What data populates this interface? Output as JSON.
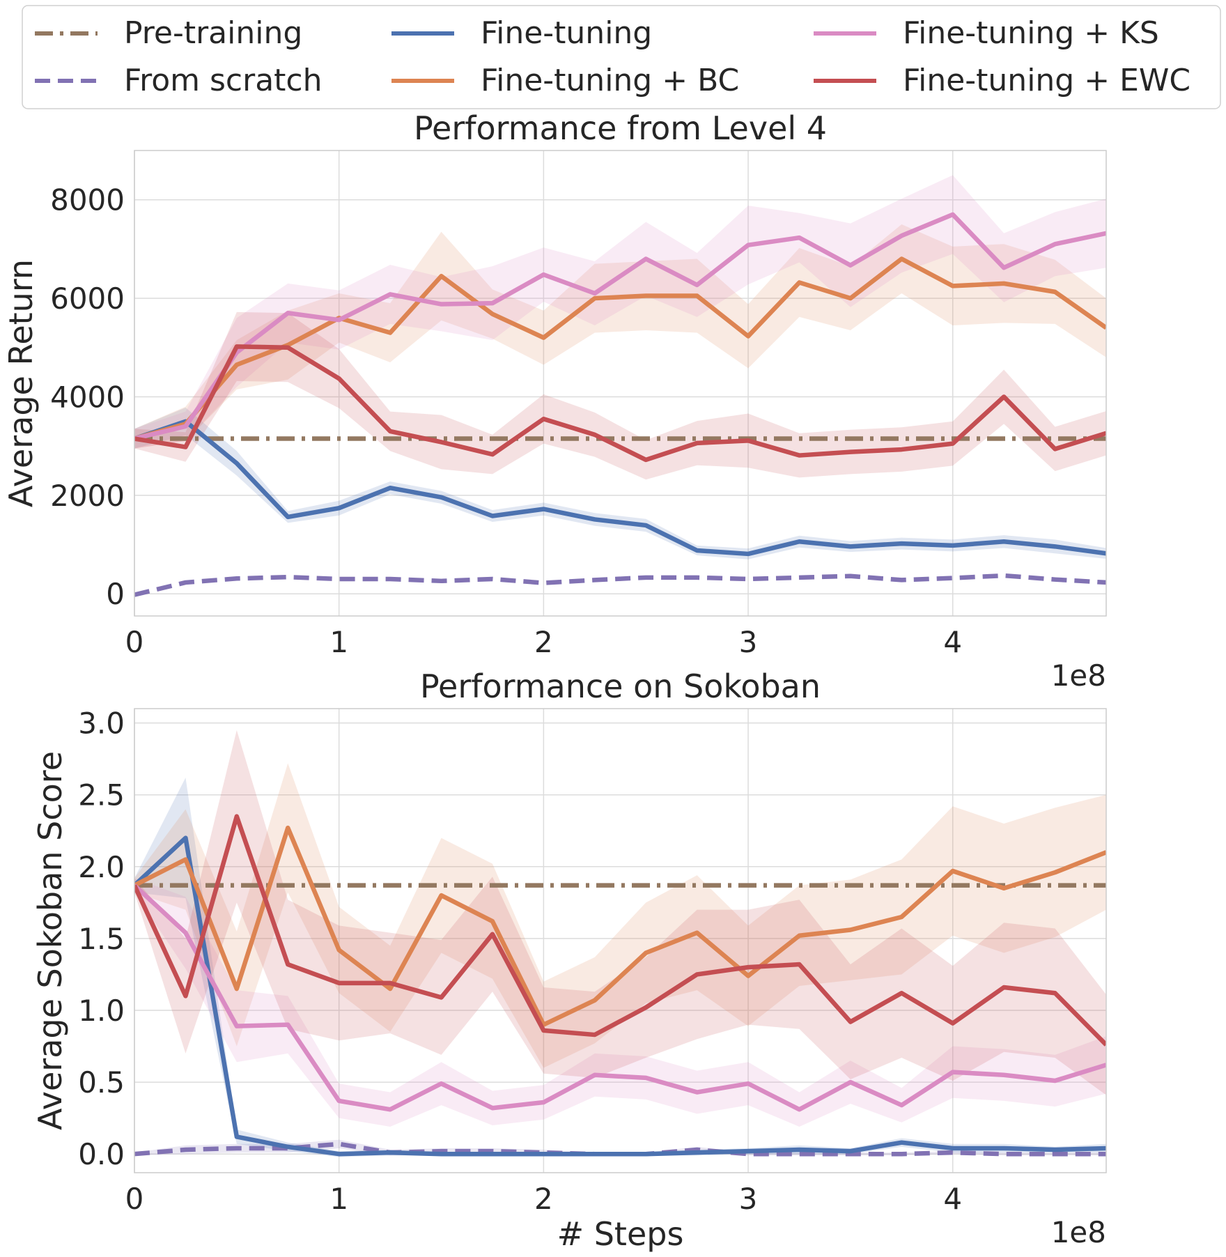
{
  "legend": {
    "items": [
      {
        "label": "Pre-training",
        "color": "#937860",
        "style": "dashdot"
      },
      {
        "label": "From scratch",
        "color": "#8172b3",
        "style": "dashed"
      },
      {
        "label": "Fine-tuning",
        "color": "#4c72b0",
        "style": "solid"
      },
      {
        "label": "Fine-tuning + BC",
        "color": "#dd8452",
        "style": "solid"
      },
      {
        "label": "Fine-tuning + KS",
        "color": "#da8bc3",
        "style": "solid"
      },
      {
        "label": "Fine-tuning + EWC",
        "color": "#c44e52",
        "style": "solid"
      }
    ]
  },
  "chart_data": [
    {
      "type": "line",
      "title": "Performance from Level 4",
      "xlabel": "",
      "ylabel": "Average Return",
      "x_offset_label": "1e8",
      "xlim": [
        0,
        4.75
      ],
      "ylim": [
        -450,
        9000
      ],
      "xticks": [
        0,
        1,
        2,
        3,
        4
      ],
      "xtick_labels": [
        "0",
        "1",
        "2",
        "3",
        "4"
      ],
      "yticks": [
        0,
        2000,
        4000,
        6000,
        8000
      ],
      "ytick_labels": [
        "0",
        "2000",
        "4000",
        "6000",
        "8000"
      ],
      "grid": true,
      "x": [
        0,
        0.25,
        0.5,
        0.75,
        1.0,
        1.25,
        1.5,
        1.75,
        2.0,
        2.25,
        2.5,
        2.75,
        3.0,
        3.25,
        3.5,
        3.75,
        4.0,
        4.25,
        4.5,
        4.75
      ],
      "series": [
        {
          "name": "Pre-training",
          "style": "dashdot",
          "color": "#937860",
          "values": [
            3150,
            3150,
            3150,
            3150,
            3150,
            3150,
            3150,
            3150,
            3150,
            3150,
            3150,
            3150,
            3150,
            3150,
            3150,
            3150,
            3150,
            3150,
            3150,
            3150
          ]
        },
        {
          "name": "From scratch",
          "style": "dashed",
          "color": "#8172b3",
          "values": [
            -20,
            230,
            310,
            340,
            300,
            300,
            260,
            300,
            220,
            280,
            330,
            330,
            300,
            330,
            360,
            280,
            320,
            370,
            290,
            230
          ]
        },
        {
          "name": "Fine-tuning",
          "style": "solid",
          "color": "#4c72b0",
          "values": [
            3150,
            3500,
            2650,
            1560,
            1740,
            2150,
            1960,
            1580,
            1720,
            1510,
            1390,
            880,
            810,
            1060,
            960,
            1020,
            980,
            1060,
            960,
            820
          ],
          "band": [
            200,
            280,
            250,
            120,
            150,
            130,
            130,
            120,
            130,
            130,
            130,
            100,
            110,
            120,
            110,
            120,
            120,
            130,
            140,
            110
          ]
        },
        {
          "name": "Fine-tuning + BC",
          "style": "solid",
          "color": "#dd8452",
          "values": [
            3150,
            3450,
            4650,
            5050,
            5600,
            5300,
            6450,
            5680,
            5200,
            6000,
            6050,
            6050,
            5230,
            6320,
            6000,
            6800,
            6250,
            6300,
            6130,
            5400
          ],
          "band": [
            200,
            350,
            500,
            700,
            500,
            600,
            900,
            500,
            550,
            700,
            700,
            750,
            650,
            700,
            650,
            700,
            800,
            800,
            650,
            600
          ]
        },
        {
          "name": "Fine-tuning + KS",
          "style": "solid",
          "color": "#da8bc3",
          "values": [
            3150,
            3400,
            4900,
            5700,
            5560,
            6080,
            5880,
            5900,
            6480,
            6100,
            6800,
            6270,
            7080,
            7230,
            6670,
            7270,
            7700,
            6620,
            7100,
            7320
          ],
          "band": [
            200,
            300,
            700,
            600,
            600,
            600,
            550,
            750,
            550,
            650,
            750,
            650,
            800,
            500,
            850,
            750,
            800,
            700,
            650,
            700
          ]
        },
        {
          "name": "Fine-tuning + EWC",
          "style": "solid",
          "color": "#c44e52",
          "values": [
            3150,
            2980,
            5020,
            5000,
            4370,
            3300,
            3080,
            2830,
            3550,
            3230,
            2720,
            3060,
            3110,
            2810,
            2880,
            2930,
            3050,
            4000,
            2940,
            3260
          ],
          "band": [
            200,
            300,
            700,
            700,
            600,
            400,
            550,
            400,
            500,
            450,
            400,
            450,
            550,
            450,
            450,
            450,
            450,
            550,
            450,
            450
          ]
        }
      ]
    },
    {
      "type": "line",
      "title": "Performance on Sokoban",
      "xlabel": "# Steps",
      "ylabel": "Average Sokoban Score",
      "x_offset_label": "1e8",
      "xlim": [
        0,
        4.75
      ],
      "ylim": [
        -0.13,
        3.1
      ],
      "xticks": [
        0,
        1,
        2,
        3,
        4
      ],
      "xtick_labels": [
        "0",
        "1",
        "2",
        "3",
        "4"
      ],
      "yticks": [
        0.0,
        0.5,
        1.0,
        1.5,
        2.0,
        2.5,
        3.0
      ],
      "ytick_labels": [
        "0.0",
        "0.5",
        "1.0",
        "1.5",
        "2.0",
        "2.5",
        "3.0"
      ],
      "grid": true,
      "x": [
        0,
        0.25,
        0.5,
        0.75,
        1.0,
        1.25,
        1.5,
        1.75,
        2.0,
        2.25,
        2.5,
        2.75,
        3.0,
        3.25,
        3.5,
        3.75,
        4.0,
        4.25,
        4.5,
        4.75
      ],
      "series": [
        {
          "name": "Pre-training",
          "style": "dashdot",
          "color": "#937860",
          "values": [
            1.87,
            1.87,
            1.87,
            1.87,
            1.87,
            1.87,
            1.87,
            1.87,
            1.87,
            1.87,
            1.87,
            1.87,
            1.87,
            1.87,
            1.87,
            1.87,
            1.87,
            1.87,
            1.87,
            1.87
          ]
        },
        {
          "name": "From scratch",
          "style": "dashed",
          "color": "#8172b3",
          "values": [
            0.0,
            0.03,
            0.04,
            0.04,
            0.07,
            0.01,
            0.02,
            0.02,
            0.01,
            0.0,
            0.0,
            0.03,
            0.0,
            0.0,
            0.0,
            0.0,
            0.01,
            0.0,
            0.0,
            0.0
          ],
          "band": [
            0.01,
            0.03,
            0.03,
            0.03,
            0.03,
            0.02,
            0.02,
            0.02,
            0.02,
            0.01,
            0.01,
            0.02,
            0.01,
            0.01,
            0.01,
            0.01,
            0.01,
            0.01,
            0.01,
            0.01
          ]
        },
        {
          "name": "Fine-tuning",
          "style": "solid",
          "color": "#4c72b0",
          "values": [
            1.87,
            2.2,
            0.12,
            0.05,
            0.0,
            0.01,
            0.0,
            0.0,
            0.0,
            0.0,
            0.0,
            0.01,
            0.02,
            0.03,
            0.02,
            0.08,
            0.04,
            0.04,
            0.03,
            0.04
          ],
          "band": [
            0.05,
            0.42,
            0.05,
            0.03,
            0.02,
            0.02,
            0.01,
            0.01,
            0.01,
            0.01,
            0.01,
            0.02,
            0.02,
            0.03,
            0.02,
            0.03,
            0.03,
            0.03,
            0.02,
            0.03
          ]
        },
        {
          "name": "Fine-tuning + BC",
          "style": "solid",
          "color": "#dd8452",
          "values": [
            1.87,
            2.05,
            1.15,
            2.27,
            1.42,
            1.15,
            1.8,
            1.62,
            0.9,
            1.07,
            1.4,
            1.54,
            1.24,
            1.52,
            1.56,
            1.65,
            1.97,
            1.85,
            1.96,
            2.1
          ],
          "band": [
            0.05,
            0.35,
            0.4,
            0.45,
            0.3,
            0.3,
            0.4,
            0.4,
            0.3,
            0.3,
            0.35,
            0.4,
            0.35,
            0.35,
            0.35,
            0.4,
            0.45,
            0.45,
            0.45,
            0.4
          ]
        },
        {
          "name": "Fine-tuning + KS",
          "style": "solid",
          "color": "#da8bc3",
          "values": [
            1.87,
            1.54,
            0.89,
            0.9,
            0.37,
            0.31,
            0.49,
            0.32,
            0.36,
            0.55,
            0.53,
            0.43,
            0.49,
            0.31,
            0.5,
            0.34,
            0.57,
            0.55,
            0.51,
            0.62
          ],
          "band": [
            0.05,
            0.25,
            0.25,
            0.2,
            0.12,
            0.12,
            0.15,
            0.12,
            0.12,
            0.15,
            0.15,
            0.15,
            0.15,
            0.12,
            0.15,
            0.12,
            0.18,
            0.18,
            0.18,
            0.2
          ]
        },
        {
          "name": "Fine-tuning + EWC",
          "style": "solid",
          "color": "#c44e52",
          "values": [
            1.87,
            1.1,
            2.35,
            1.32,
            1.19,
            1.19,
            1.09,
            1.53,
            0.86,
            0.83,
            1.02,
            1.25,
            1.3,
            1.32,
            0.92,
            1.12,
            0.91,
            1.16,
            1.12,
            0.76
          ],
          "band": [
            0.05,
            0.4,
            0.6,
            0.45,
            0.4,
            0.35,
            0.4,
            0.4,
            0.3,
            0.3,
            0.35,
            0.45,
            0.4,
            0.45,
            0.4,
            0.45,
            0.4,
            0.45,
            0.45,
            0.35
          ]
        }
      ]
    }
  ]
}
